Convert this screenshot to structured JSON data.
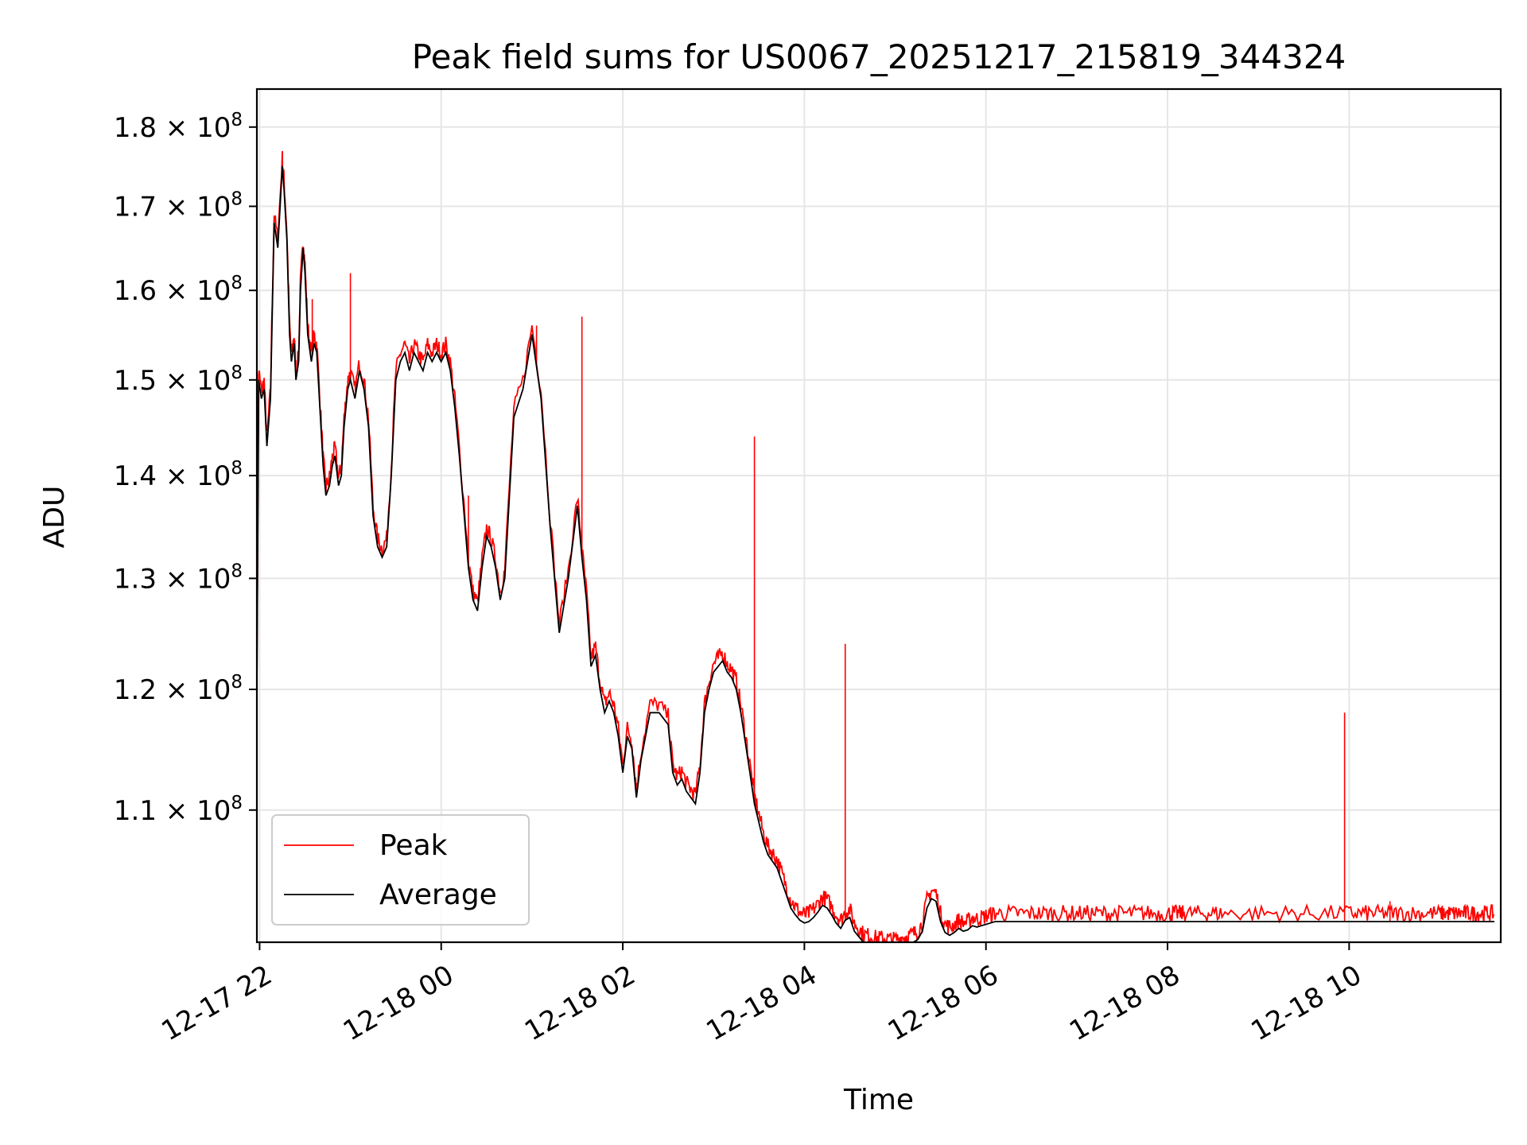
{
  "chart_data": {
    "type": "line",
    "title": "Peak field sums for US0067_20251217_215819_344324",
    "xlabel": "Time",
    "ylabel": "ADU",
    "yscale": "log",
    "ylim": [
      100000000,
      185000000
    ],
    "xlim_hours": [
      21.97,
      35.67
    ],
    "grid": true,
    "legend_position": "lower-left",
    "x_tick_hours": [
      22,
      24,
      26,
      28,
      30,
      32,
      34
    ],
    "x_tick_labels": [
      "12-17 22",
      "12-18 00",
      "12-18 02",
      "12-18 04",
      "12-18 06",
      "12-18 08",
      "12-18 10"
    ],
    "y_ticks": [
      110000000,
      120000000,
      130000000,
      140000000,
      150000000,
      160000000,
      170000000,
      180000000
    ],
    "y_tick_mantissas": [
      "1.1",
      "1.2",
      "1.3",
      "1.4",
      "1.5",
      "1.6",
      "1.7",
      "1.8"
    ],
    "y_tick_base": "× 10",
    "y_tick_exponent": "8",
    "legend": {
      "peak": "Peak",
      "average": "Average"
    },
    "colors": {
      "peak": "#ff0000",
      "average": "#000000",
      "grid": "#e6e6e6"
    },
    "series": [
      {
        "name": "Average",
        "time_hours": [
          21.97,
          21.99,
          22.02,
          22.05,
          22.08,
          22.12,
          22.16,
          22.2,
          22.25,
          22.27,
          22.3,
          22.33,
          22.35,
          22.38,
          22.4,
          22.43,
          22.45,
          22.48,
          22.5,
          22.53,
          22.57,
          22.6,
          22.63,
          22.67,
          22.7,
          22.73,
          22.77,
          22.8,
          22.83,
          22.87,
          22.9,
          22.93,
          22.97,
          23.0,
          23.05,
          23.1,
          23.15,
          23.2,
          23.25,
          23.3,
          23.35,
          23.4,
          23.45,
          23.5,
          23.55,
          23.6,
          23.65,
          23.7,
          23.75,
          23.8,
          23.85,
          23.9,
          23.95,
          24.0,
          24.05,
          24.1,
          24.15,
          24.2,
          24.3,
          24.35,
          24.4,
          24.45,
          24.5,
          24.55,
          24.6,
          24.65,
          24.7,
          24.8,
          24.9,
          25.0,
          25.1,
          25.2,
          25.3,
          25.4,
          25.5,
          25.55,
          25.6,
          25.65,
          25.7,
          25.75,
          25.8,
          25.85,
          25.9,
          25.95,
          26.0,
          26.05,
          26.1,
          26.15,
          26.2,
          26.3,
          26.4,
          26.5,
          26.55,
          26.6,
          26.65,
          26.7,
          26.75,
          26.8,
          26.85,
          26.9,
          26.95,
          27.0,
          27.05,
          27.1,
          27.15,
          27.2,
          27.25,
          27.3,
          27.35,
          27.4,
          27.45,
          27.5,
          27.55,
          27.6,
          27.65,
          27.7,
          27.75,
          27.8,
          27.85,
          27.9,
          27.95,
          28.0,
          28.05,
          28.1,
          28.15,
          28.2,
          28.25,
          28.3,
          28.35,
          28.4,
          28.45,
          28.5,
          28.55,
          28.6,
          28.65,
          28.7,
          28.75,
          28.8,
          28.85,
          28.9,
          28.95,
          29.0,
          29.05,
          29.1,
          29.15,
          29.2,
          29.25,
          29.3,
          29.35,
          29.4,
          29.45,
          29.5,
          29.55,
          29.6,
          29.65,
          29.7,
          29.75,
          29.8,
          29.85,
          29.9,
          29.95,
          30.0,
          30.05,
          30.1,
          30.2,
          30.3,
          30.4,
          30.5,
          30.6,
          30.7,
          30.8,
          30.9,
          31.0,
          31.1,
          31.2,
          31.3,
          31.4,
          31.5,
          31.6,
          31.7,
          31.8,
          31.9,
          32.0,
          32.05,
          32.1,
          32.15,
          32.2,
          32.3,
          32.4,
          32.5,
          32.6,
          32.8,
          33.0,
          33.2,
          33.4,
          33.6,
          33.8,
          34.0,
          34.1,
          34.2,
          34.3,
          34.4,
          34.5,
          34.6,
          34.7,
          34.8,
          34.9,
          35.0,
          35.05,
          35.1,
          35.15,
          35.2,
          35.25,
          35.3,
          35.35,
          35.4,
          35.45,
          35.5,
          35.55,
          35.6,
          35.65
        ],
        "values": [
          120000000,
          150000000,
          148000000,
          149000000,
          143000000,
          148000000,
          168000000,
          165000000,
          175000000,
          172000000,
          166000000,
          155000000,
          152000000,
          154000000,
          150000000,
          152000000,
          160000000,
          165000000,
          162000000,
          155000000,
          152000000,
          154000000,
          153000000,
          146000000,
          141000000,
          138000000,
          139000000,
          141000000,
          142000000,
          139000000,
          140000000,
          145000000,
          149000000,
          150000000,
          148000000,
          151000000,
          149000000,
          145000000,
          136000000,
          133000000,
          132000000,
          133000000,
          140000000,
          150000000,
          152000000,
          153000000,
          151000000,
          153000000,
          152000000,
          151000000,
          153000000,
          152000000,
          153000000,
          152000000,
          153000000,
          151000000,
          147000000,
          142000000,
          131000000,
          128000000,
          127000000,
          131000000,
          134000000,
          133000000,
          131000000,
          128000000,
          130000000,
          146000000,
          149000000,
          155000000,
          148000000,
          135000000,
          125000000,
          130000000,
          137000000,
          132000000,
          128000000,
          122000000,
          123000000,
          120000000,
          118000000,
          119000000,
          118000000,
          116000000,
          113000000,
          116000000,
          115000000,
          111000000,
          114000000,
          118000000,
          118000000,
          117000000,
          113000000,
          112000000,
          112500000,
          111500000,
          111000000,
          110500000,
          113000000,
          118000000,
          120000000,
          121500000,
          122000000,
          122500000,
          121500000,
          121000000,
          120000000,
          118000000,
          115500000,
          113000000,
          110500000,
          109000000,
          107500000,
          106500000,
          106000000,
          105500000,
          104500000,
          103500000,
          102500000,
          102000000,
          101600000,
          101400000,
          101500000,
          101800000,
          102200000,
          102700000,
          102500000,
          102000000,
          101400000,
          101000000,
          101600000,
          101800000,
          100800000,
          100400000,
          100000000,
          99900000,
          99800000,
          99700000,
          99700000,
          99700000,
          99600000,
          99600000,
          99700000,
          99800000,
          99900000,
          100000000,
          100200000,
          100800000,
          102500000,
          103200000,
          103000000,
          101500000,
          100700000,
          100500000,
          100700000,
          101000000,
          100800000,
          100900000,
          101200000,
          101100000,
          101200000,
          101300000,
          101400000,
          101500000,
          101500000,
          101500000,
          101500000,
          101500000,
          101500000,
          101500000,
          101500000,
          101500000,
          101500000,
          101500000,
          101500000,
          101500000,
          101500000,
          101500000,
          101500000,
          101500000,
          101500000,
          101500000,
          101500000,
          101500000,
          101500000,
          101500000,
          101500000,
          101500000,
          101500000,
          101500000,
          101500000,
          101500000,
          101500000,
          101500000,
          101500000,
          101500000,
          101500000,
          101500000,
          101500000,
          101500000,
          101500000,
          101500000,
          101500000,
          101500000,
          101500000,
          101500000,
          101500000,
          101500000,
          101500000,
          101500000,
          101500000,
          101500000,
          101500000,
          101500000,
          101500000,
          101500000,
          101500000,
          101500000,
          101500000,
          101500000
        ]
      },
      {
        "name": "Peak",
        "note": "tracks Average closely with small positive spikes; notable spikes near 22.25h (170M), 24.3h (138M), 25.05h (156M), 27.45h (144M), 28.45h (124M), 33.95h (118M), 34.45h (103M)",
        "spikes_hours": [
          22.28,
          22.58,
          23.0,
          24.3,
          25.05,
          25.55,
          27.45,
          28.45,
          33.95,
          34.45
        ],
        "spikes_values": [
          170000000,
          159000000,
          162000000,
          138000000,
          156000000,
          157000000,
          144000000,
          124000000,
          118000000,
          103000000
        ]
      }
    ]
  }
}
